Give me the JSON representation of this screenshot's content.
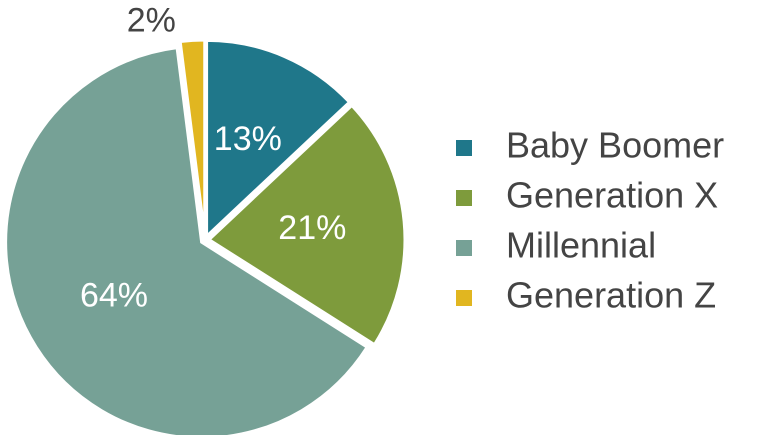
{
  "chart_data": {
    "type": "pie",
    "categories": [
      "Baby Boomer",
      "Generation X",
      "Millennial",
      "Generation Z"
    ],
    "values": [
      13,
      21,
      64,
      2
    ],
    "value_labels": [
      "13%",
      "21%",
      "64%",
      "2%"
    ],
    "colors": [
      "#1f778a",
      "#7e9b3c",
      "#76a196",
      "#e1b620"
    ],
    "legend": "right"
  }
}
